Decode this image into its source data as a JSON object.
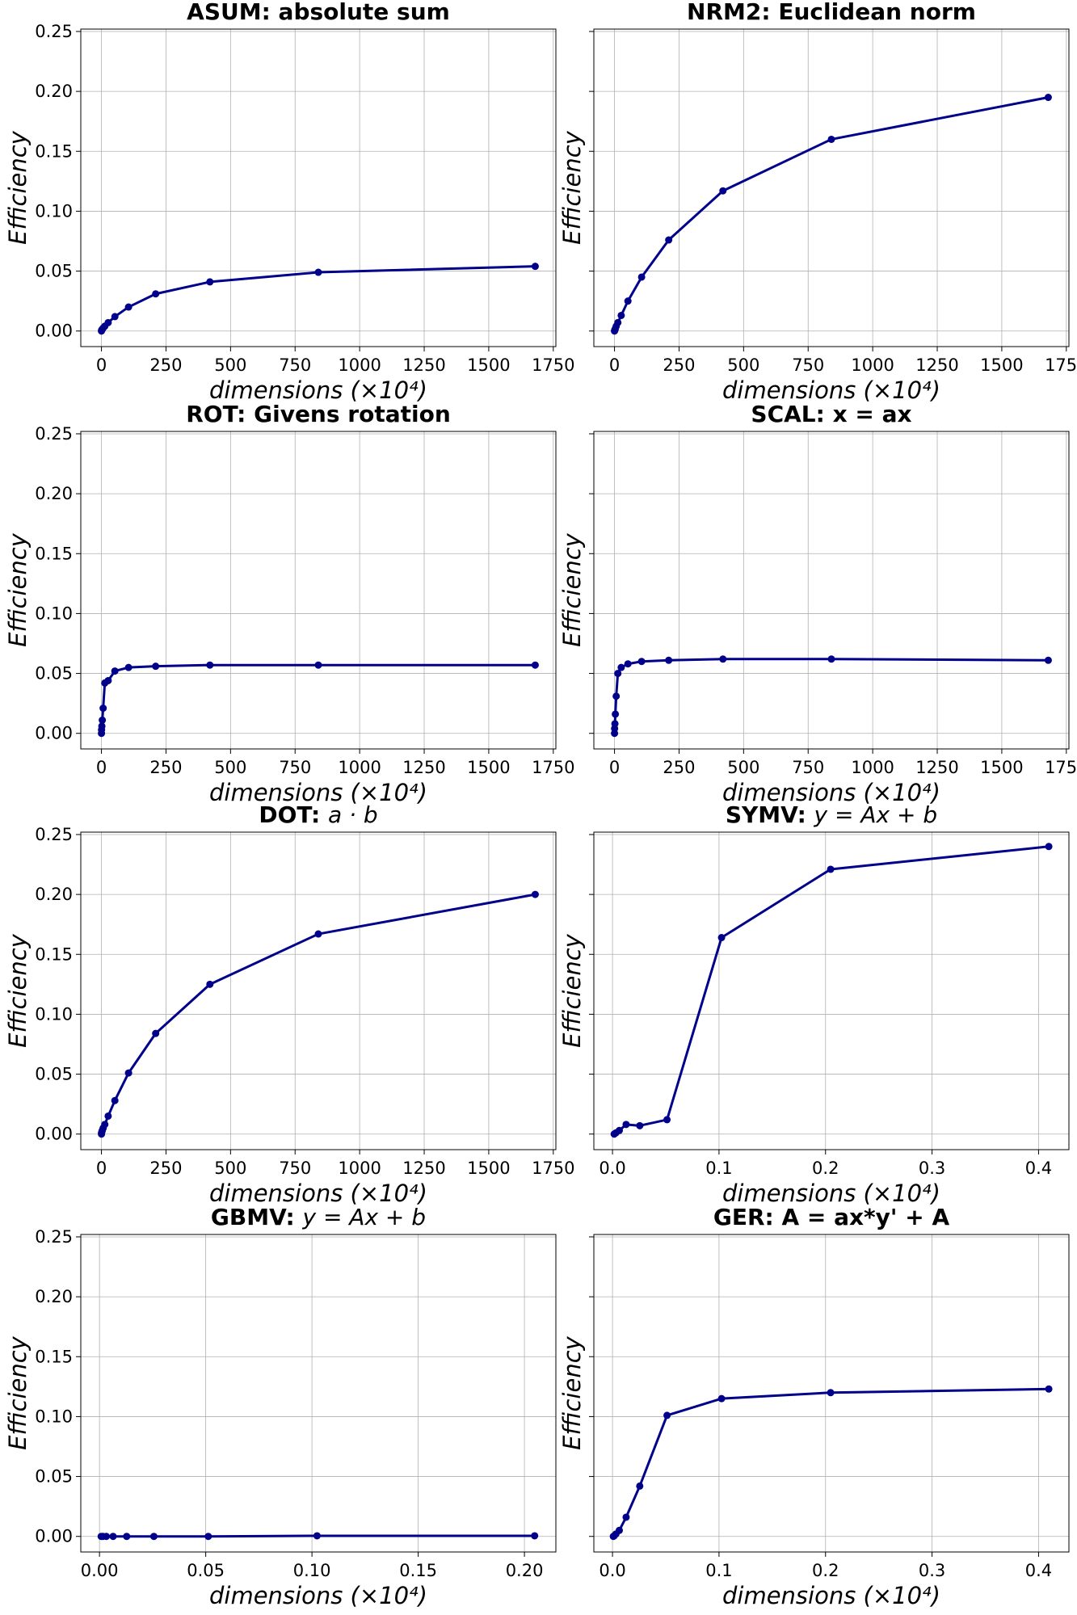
{
  "chart_data": [
    {
      "type": "line",
      "title": "ASUM: absolute sum",
      "xlabel": "dimensions (×10⁴)",
      "ylabel": "Efficiency",
      "xlim": [
        -80,
        1760
      ],
      "ylim": [
        -0.013,
        0.252
      ],
      "xticks": [
        0,
        250,
        500,
        750,
        1000,
        1250,
        1500,
        1750
      ],
      "yticks": [
        0.0,
        0.05,
        0.1,
        0.15,
        0.2,
        0.25
      ],
      "show_yticklabels": true,
      "grid": true,
      "color": "#00008b",
      "series": [
        {
          "x": [
            0.1,
            0.4,
            1.6,
            3.3,
            6.6,
            13,
            26,
            52,
            105,
            210,
            420,
            840,
            1680
          ],
          "y": [
            0.0,
            0.0005,
            0.001,
            0.0015,
            0.0025,
            0.004,
            0.007,
            0.012,
            0.02,
            0.031,
            0.041,
            0.049,
            0.054
          ]
        }
      ]
    },
    {
      "type": "line",
      "title": "NRM2: Euclidean norm",
      "xlabel": "dimensions (×10⁴)",
      "ylabel": "Efficiency",
      "xlim": [
        -80,
        1760
      ],
      "ylim": [
        -0.013,
        0.252
      ],
      "xticks": [
        0,
        250,
        500,
        750,
        1000,
        1250,
        1500,
        1750
      ],
      "yticks": [
        0.0,
        0.05,
        0.1,
        0.15,
        0.2,
        0.25
      ],
      "show_yticklabels": false,
      "grid": true,
      "color": "#00008b",
      "series": [
        {
          "x": [
            0.1,
            0.4,
            1.6,
            3.3,
            6.6,
            13,
            26,
            52,
            105,
            210,
            420,
            840,
            1680
          ],
          "y": [
            0.0,
            0.0005,
            0.001,
            0.002,
            0.004,
            0.007,
            0.013,
            0.025,
            0.045,
            0.076,
            0.117,
            0.16,
            0.195
          ]
        }
      ]
    },
    {
      "type": "line",
      "title": "ROT: Givens rotation",
      "xlabel": "dimensions (×10⁴)",
      "ylabel": "Efficiency",
      "xlim": [
        -80,
        1760
      ],
      "ylim": [
        -0.013,
        0.252
      ],
      "xticks": [
        0,
        250,
        500,
        750,
        1000,
        1250,
        1500,
        1750
      ],
      "yticks": [
        0.0,
        0.05,
        0.1,
        0.15,
        0.2,
        0.25
      ],
      "show_yticklabels": true,
      "grid": true,
      "color": "#00008b",
      "series": [
        {
          "x": [
            0.1,
            0.4,
            1.6,
            3.3,
            6.6,
            13,
            26,
            52,
            105,
            210,
            420,
            840,
            1680
          ],
          "y": [
            0.0,
            0.003,
            0.006,
            0.011,
            0.021,
            0.042,
            0.044,
            0.052,
            0.055,
            0.056,
            0.057,
            0.057,
            0.057
          ]
        }
      ]
    },
    {
      "type": "line",
      "title": "SCAL: x = ax",
      "xlabel": "dimensions (×10⁴)",
      "ylabel": "Efficiency",
      "xlim": [
        -80,
        1760
      ],
      "ylim": [
        -0.013,
        0.252
      ],
      "xticks": [
        0,
        250,
        500,
        750,
        1000,
        1250,
        1500,
        1750
      ],
      "yticks": [
        0.0,
        0.05,
        0.1,
        0.15,
        0.2,
        0.25
      ],
      "show_yticklabels": false,
      "grid": true,
      "color": "#00008b",
      "series": [
        {
          "x": [
            0.1,
            0.4,
            1.6,
            3.3,
            6.6,
            13,
            26,
            52,
            105,
            210,
            420,
            840,
            1680
          ],
          "y": [
            0.0,
            0.004,
            0.008,
            0.016,
            0.031,
            0.05,
            0.055,
            0.058,
            0.06,
            0.061,
            0.062,
            0.062,
            0.061
          ]
        }
      ]
    },
    {
      "type": "line",
      "title_main": "DOT: ",
      "title_math": "a · b",
      "xlabel": "dimensions (×10⁴)",
      "ylabel": "Efficiency",
      "xlim": [
        -80,
        1760
      ],
      "ylim": [
        -0.013,
        0.252
      ],
      "xticks": [
        0,
        250,
        500,
        750,
        1000,
        1250,
        1500,
        1750
      ],
      "yticks": [
        0.0,
        0.05,
        0.1,
        0.15,
        0.2,
        0.25
      ],
      "show_yticklabels": true,
      "grid": true,
      "color": "#00008b",
      "series": [
        {
          "x": [
            0.1,
            0.4,
            1.6,
            3.3,
            6.6,
            13,
            26,
            52,
            105,
            210,
            420,
            840,
            1680
          ],
          "y": [
            0.0,
            0.001,
            0.002,
            0.003,
            0.005,
            0.008,
            0.015,
            0.028,
            0.051,
            0.084,
            0.125,
            0.167,
            0.2
          ]
        }
      ]
    },
    {
      "type": "line",
      "title_main": "SYMV: ",
      "title_math": "y = Ax + b",
      "xlabel": "dimensions (×10⁴)",
      "ylabel": "Efficiency",
      "xlim": [
        -0.0175,
        0.4285
      ],
      "ylim": [
        -0.013,
        0.252
      ],
      "xticks": [
        0.0,
        0.1,
        0.2,
        0.3,
        0.4
      ],
      "yticks": [
        0.0,
        0.05,
        0.1,
        0.15,
        0.2,
        0.25
      ],
      "show_yticklabels": false,
      "grid": true,
      "color": "#00008b",
      "series": [
        {
          "x": [
            0.0016,
            0.0032,
            0.0064,
            0.0128,
            0.0256,
            0.0512,
            0.1024,
            0.2048,
            0.4096
          ],
          "y": [
            0.0,
            0.001,
            0.003,
            0.008,
            0.007,
            0.012,
            0.164,
            0.221,
            0.24
          ]
        }
      ]
    },
    {
      "type": "line",
      "title_main": "GBMV: ",
      "title_math": "y = Ax + b",
      "xlabel": "dimensions (×10⁴)",
      "ylabel": "Efficiency",
      "xlim": [
        -0.0088,
        0.2148
      ],
      "ylim": [
        -0.013,
        0.252
      ],
      "xticks": [
        0.0,
        0.05,
        0.1,
        0.15,
        0.2
      ],
      "yticks": [
        0.0,
        0.05,
        0.1,
        0.15,
        0.2,
        0.25
      ],
      "show_yticklabels": true,
      "grid": true,
      "color": "#00008b",
      "series": [
        {
          "x": [
            0.0008,
            0.0016,
            0.0032,
            0.0064,
            0.0128,
            0.0256,
            0.0512,
            0.1024,
            0.2048
          ],
          "y": [
            0.0,
            0.0,
            0.0,
            0.0,
            0.0,
            0.0,
            0.0,
            0.0005,
            0.0005
          ]
        }
      ]
    },
    {
      "type": "line",
      "title": "GER: A = ax*y' + A",
      "xlabel": "dimensions (×10⁴)",
      "ylabel": "Efficiency",
      "xlim": [
        -0.0175,
        0.4285
      ],
      "ylim": [
        -0.013,
        0.252
      ],
      "xticks": [
        0.0,
        0.1,
        0.2,
        0.3,
        0.4
      ],
      "yticks": [
        0.0,
        0.05,
        0.1,
        0.15,
        0.2,
        0.25
      ],
      "show_yticklabels": false,
      "grid": true,
      "color": "#00008b",
      "series": [
        {
          "x": [
            0.0008,
            0.0016,
            0.0032,
            0.0064,
            0.0128,
            0.0256,
            0.0512,
            0.1024,
            0.2048,
            0.4096
          ],
          "y": [
            0.0,
            0.0005,
            0.002,
            0.005,
            0.016,
            0.042,
            0.101,
            0.115,
            0.12,
            0.123
          ]
        }
      ]
    }
  ]
}
